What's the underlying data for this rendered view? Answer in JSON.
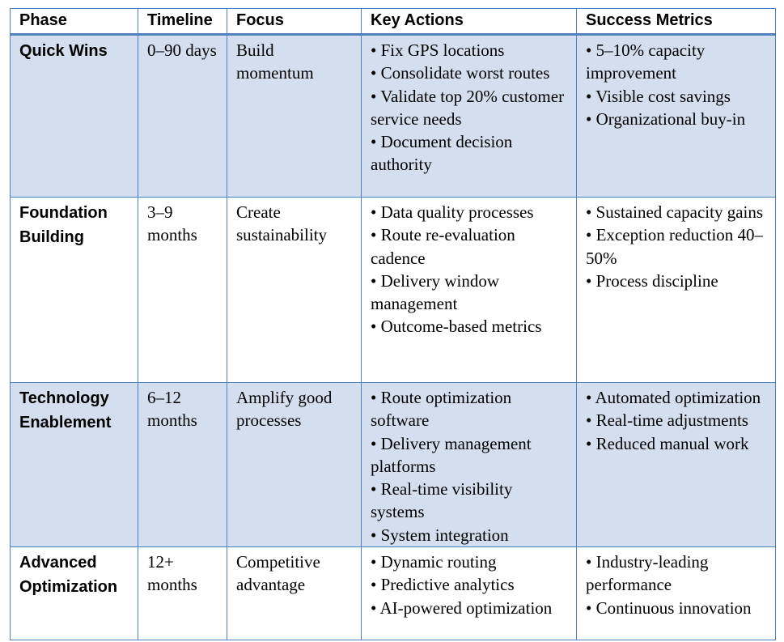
{
  "table": {
    "header": [
      "Phase",
      "Timeline",
      "Focus",
      "Key Actions",
      "Success Metrics"
    ],
    "rows": [
      {
        "phase": "Quick Wins",
        "timeline": "0–90 days",
        "focus": "Build momentum",
        "actions": [
          "• Fix GPS locations",
          "• Consolidate worst routes",
          "• Validate top 20% customer service needs",
          "• Document decision authority"
        ],
        "metrics": [
          "• 5–10% capacity improvement",
          "• Visible cost savings",
          "• Organizational buy-in"
        ]
      },
      {
        "phase": "Foundation Building",
        "timeline": "3–9 months",
        "focus": "Create sustainability",
        "actions": [
          "• Data quality processes",
          "• Route re-evaluation cadence",
          "• Delivery window management",
          "• Outcome-based metrics"
        ],
        "metrics": [
          "• Sustained capacity gains",
          "• Exception reduction 40–50%",
          "• Process discipline"
        ]
      },
      {
        "phase": "Technology Enablement",
        "timeline": "6–12 months",
        "focus": "Amplify good processes",
        "actions": [
          "• Route optimization software",
          "• Delivery management platforms",
          "• Real-time visibility systems",
          "• System integration"
        ],
        "metrics": [
          "• Automated optimization",
          "• Real-time adjustments",
          "• Reduced manual work"
        ]
      },
      {
        "phase": "Advanced Optimization",
        "timeline": "12+ months",
        "focus": "Competitive advantage",
        "actions": [
          "• Dynamic routing",
          "• Predictive analytics",
          "• AI-powered optimization"
        ],
        "metrics": [
          "• Industry-leading performance",
          "• Continuous innovation"
        ]
      }
    ]
  }
}
